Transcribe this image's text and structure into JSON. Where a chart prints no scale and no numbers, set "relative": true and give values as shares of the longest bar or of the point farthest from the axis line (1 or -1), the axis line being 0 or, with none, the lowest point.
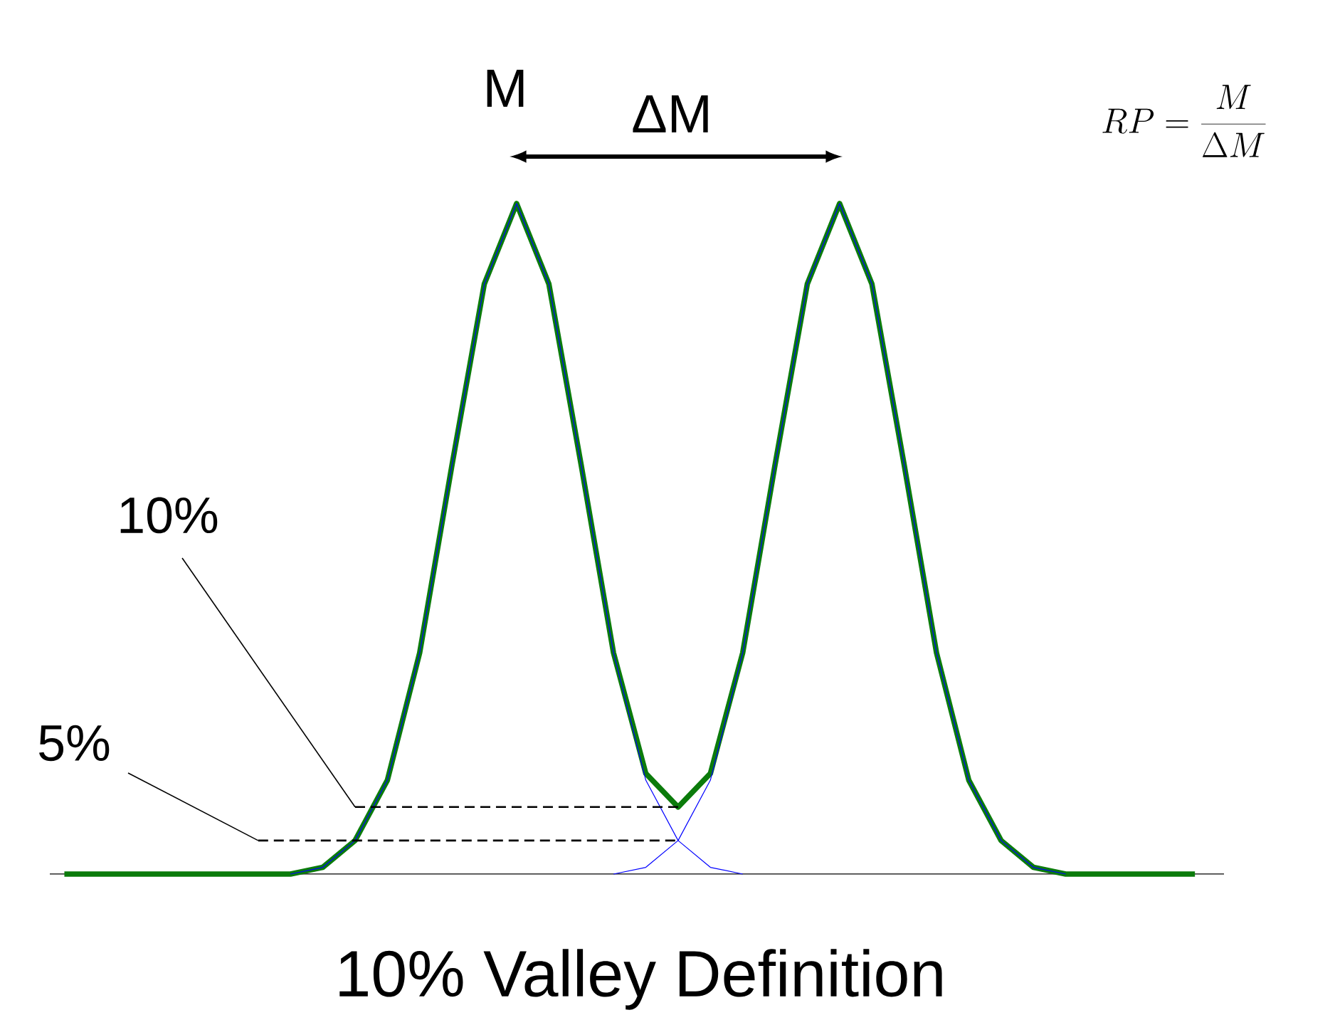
{
  "chart_data": {
    "type": "line",
    "relative": true,
    "title": "10% Valley Definition",
    "categories": [
      null,
      null,
      null,
      null,
      null,
      null,
      null,
      null,
      null,
      null,
      null,
      null,
      null,
      null,
      null,
      null,
      null,
      null,
      null,
      null,
      null,
      null,
      null,
      null,
      null,
      null,
      null,
      null,
      null,
      null,
      null,
      null,
      null,
      null,
      null,
      null
    ],
    "series": [
      {
        "color": "#0b7b0b",
        "values": [
          0,
          0,
          0,
          0,
          0,
          0,
          0,
          0,
          0.01,
          0.05,
          0.14,
          0.33,
          0.61,
          0.88,
          1,
          0.88,
          0.61,
          0.33,
          0.15,
          0.1,
          0.15,
          0.33,
          0.61,
          0.88,
          1,
          0.88,
          0.61,
          0.33,
          0.14,
          0.05,
          0.01,
          0,
          0,
          0,
          0,
          0
        ]
      },
      {
        "color": "#0000ff",
        "values": [
          null,
          null,
          null,
          null,
          null,
          null,
          null,
          0,
          0.01,
          0.05,
          0.14,
          0.33,
          0.61,
          0.88,
          1,
          0.88,
          0.61,
          0.33,
          0.14,
          0.05,
          0.01,
          0,
          null,
          null,
          null,
          null,
          null,
          null,
          null,
          null,
          null,
          null,
          null,
          null,
          null,
          null
        ]
      },
      {
        "color": "#0000ff",
        "values": [
          null,
          null,
          null,
          null,
          null,
          null,
          null,
          null,
          null,
          null,
          null,
          null,
          null,
          null,
          null,
          null,
          null,
          0,
          0.01,
          0.05,
          0.14,
          0.33,
          0.61,
          0.88,
          1,
          0.88,
          0.61,
          0.33,
          0.14,
          0.05,
          0.01,
          0,
          null,
          null,
          null,
          null
        ]
      }
    ],
    "ref_lines": [
      {
        "axis": "y",
        "value": 0.1,
        "label": "10%",
        "line_style": "dashed"
      },
      {
        "axis": "y",
        "value": 0.05,
        "label": "5%",
        "line_style": "dashed"
      }
    ],
    "annotations": [
      "M",
      "ΔM",
      "RP=\\frac{M}{\\Delta M}"
    ]
  }
}
